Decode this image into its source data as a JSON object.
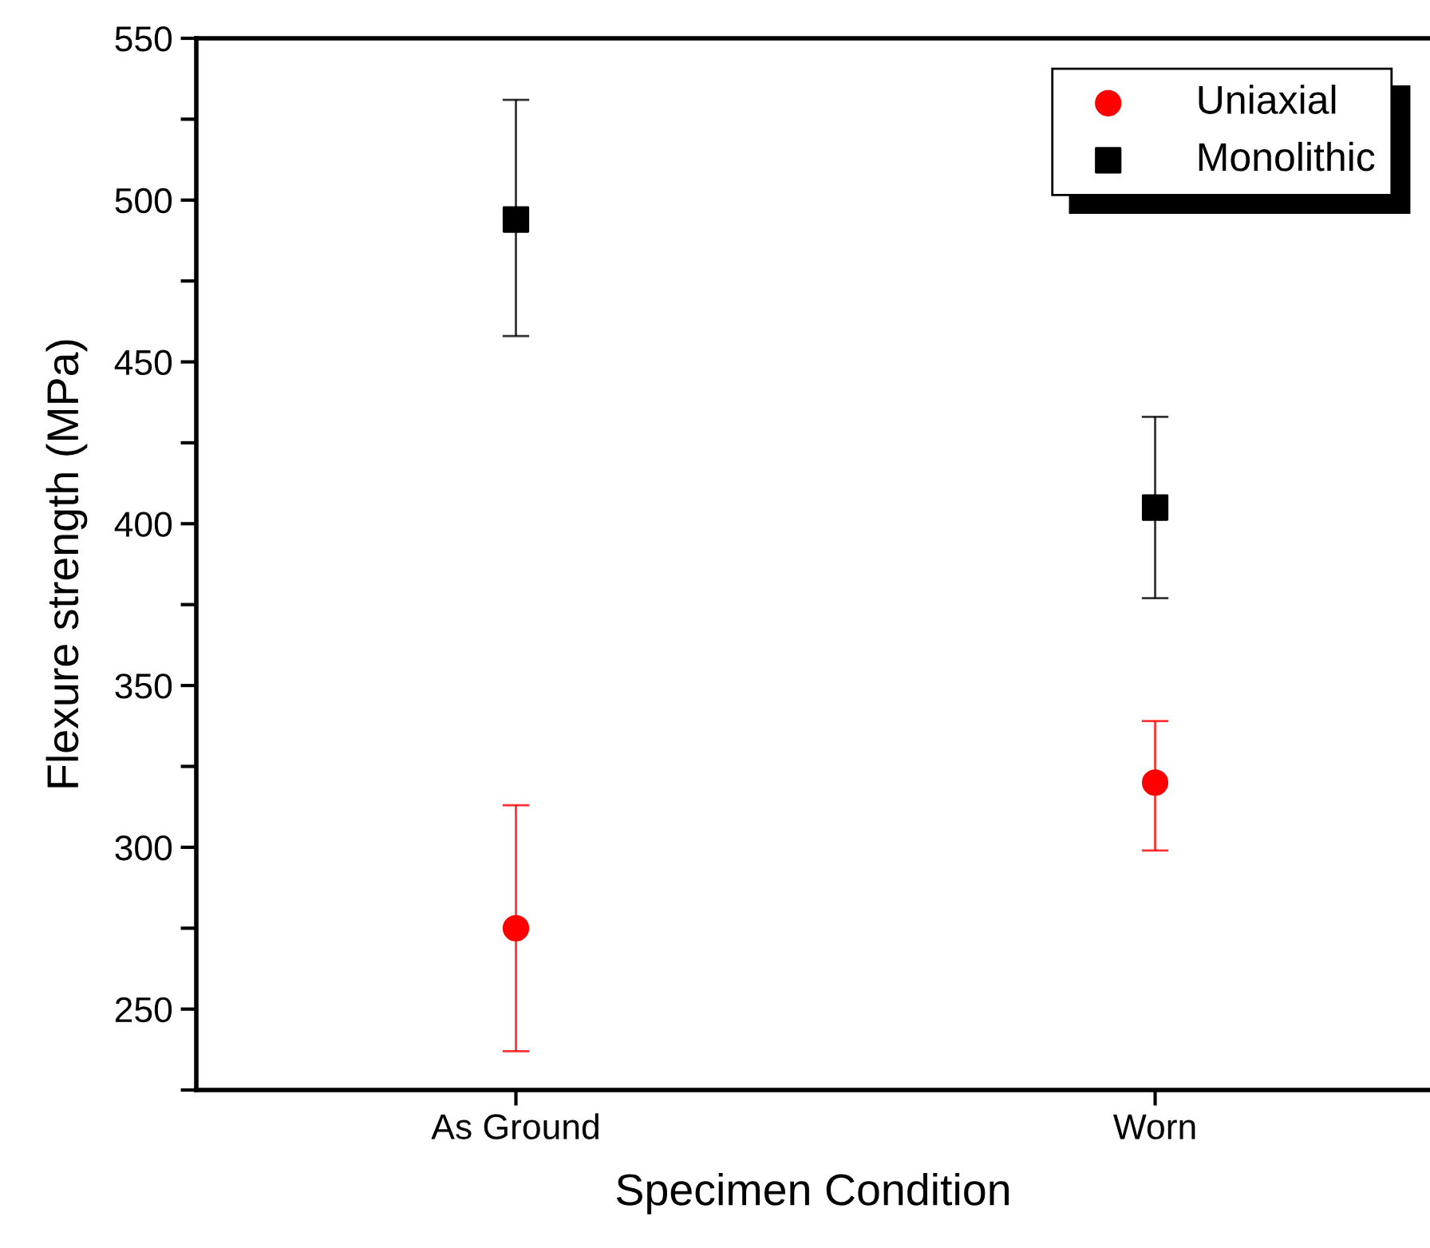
{
  "chart_data": {
    "type": "scatter",
    "xlabel": "Specimen Condition",
    "ylabel": "Flexure strength (MPa)",
    "categories": [
      "As Ground",
      "Worn"
    ],
    "series": [
      {
        "name": "Uniaxial",
        "color": "#ff0000",
        "marker": "circle",
        "values": [
          275,
          320
        ],
        "errors": [
          [
            237,
            313
          ],
          [
            299,
            339
          ]
        ]
      },
      {
        "name": "Monolithic",
        "color": "#000000",
        "marker": "square",
        "values": [
          494,
          405
        ],
        "errors": [
          [
            458,
            531
          ],
          [
            377,
            433
          ]
        ]
      }
    ],
    "ylim": [
      225,
      550
    ],
    "yticks": [
      {
        "value": 225,
        "label": null
      },
      250,
      {
        "value": 275,
        "label": null
      },
      300,
      {
        "value": 325,
        "label": null
      },
      350,
      {
        "value": 375,
        "label": null
      },
      400,
      {
        "value": 425,
        "label": null
      },
      450,
      {
        "value": 475,
        "label": null
      },
      500,
      {
        "value": 525,
        "label": null
      },
      550
    ],
    "grid": false,
    "legend": "top right"
  }
}
